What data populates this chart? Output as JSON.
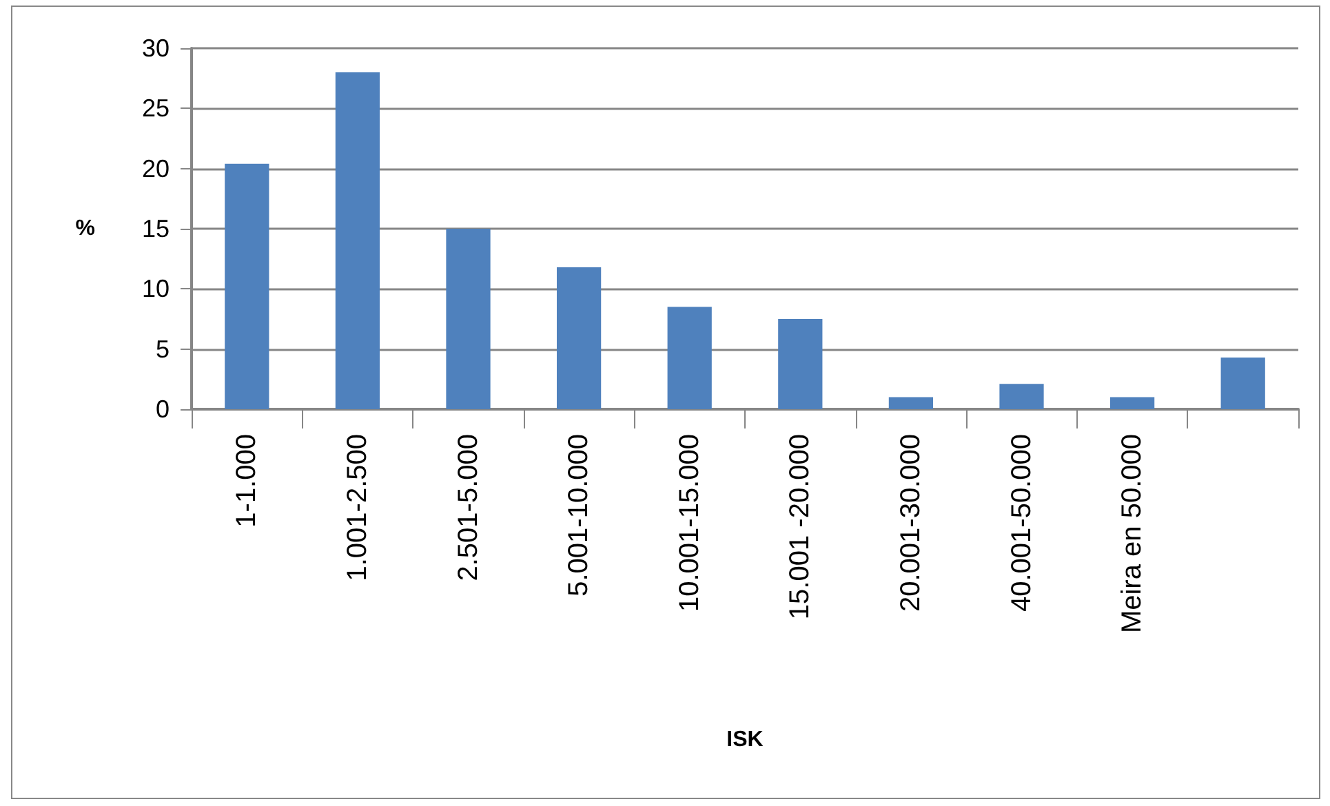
{
  "chart_data": {
    "type": "bar",
    "xlabel": "ISK",
    "ylabel": "%",
    "categories": [
      "1-1.000",
      "1.001-2.500",
      "2.501-5.000",
      "5.001-10.000",
      "10.001-15.000",
      "15.001 -20.000",
      "20.001-30.000",
      "40.001-50.000",
      "Meira en 50.000",
      null
    ],
    "values": [
      20.4,
      28,
      15,
      11.8,
      8.5,
      7.5,
      1,
      2.1,
      1,
      4.3
    ],
    "color": "#4f81bd",
    "ylim": [
      0,
      30
    ],
    "yticks": [
      0,
      5,
      10,
      15,
      20,
      25,
      30
    ],
    "grid": "y"
  }
}
